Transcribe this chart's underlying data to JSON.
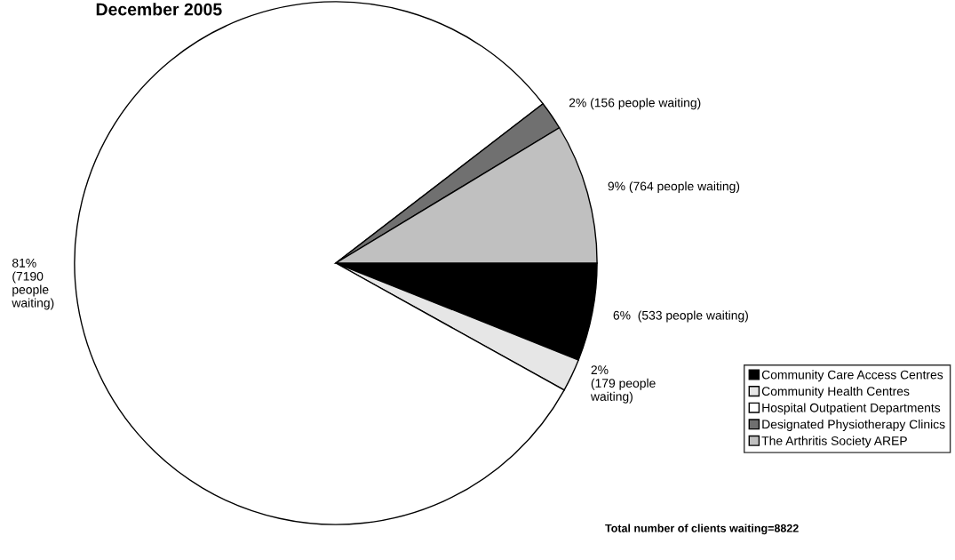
{
  "chart_data": {
    "type": "pie",
    "title": "December 2005",
    "categories": [
      "Community Care Access Centres",
      "Community Health Centres",
      "Hospital Outpatient Departments",
      "Designated Physiotherapy Clinics",
      "The Arthritis Society AREP"
    ],
    "values": [
      533,
      179,
      7190,
      156,
      764
    ],
    "colors": [
      "#000000",
      "#e6e6e6",
      "#ffffff",
      "#707070",
      "#c0c0c0"
    ],
    "value_labels": [
      "6%  (533 people waiting)",
      "2%\n(179 people\nwaiting)",
      "81%\n(7190\npeople\nwaiting)",
      "2% (156 people waiting)",
      "9% (764 people waiting)"
    ],
    "legend": "right",
    "annotations": [
      "Total number of clients waiting=8822"
    ]
  }
}
